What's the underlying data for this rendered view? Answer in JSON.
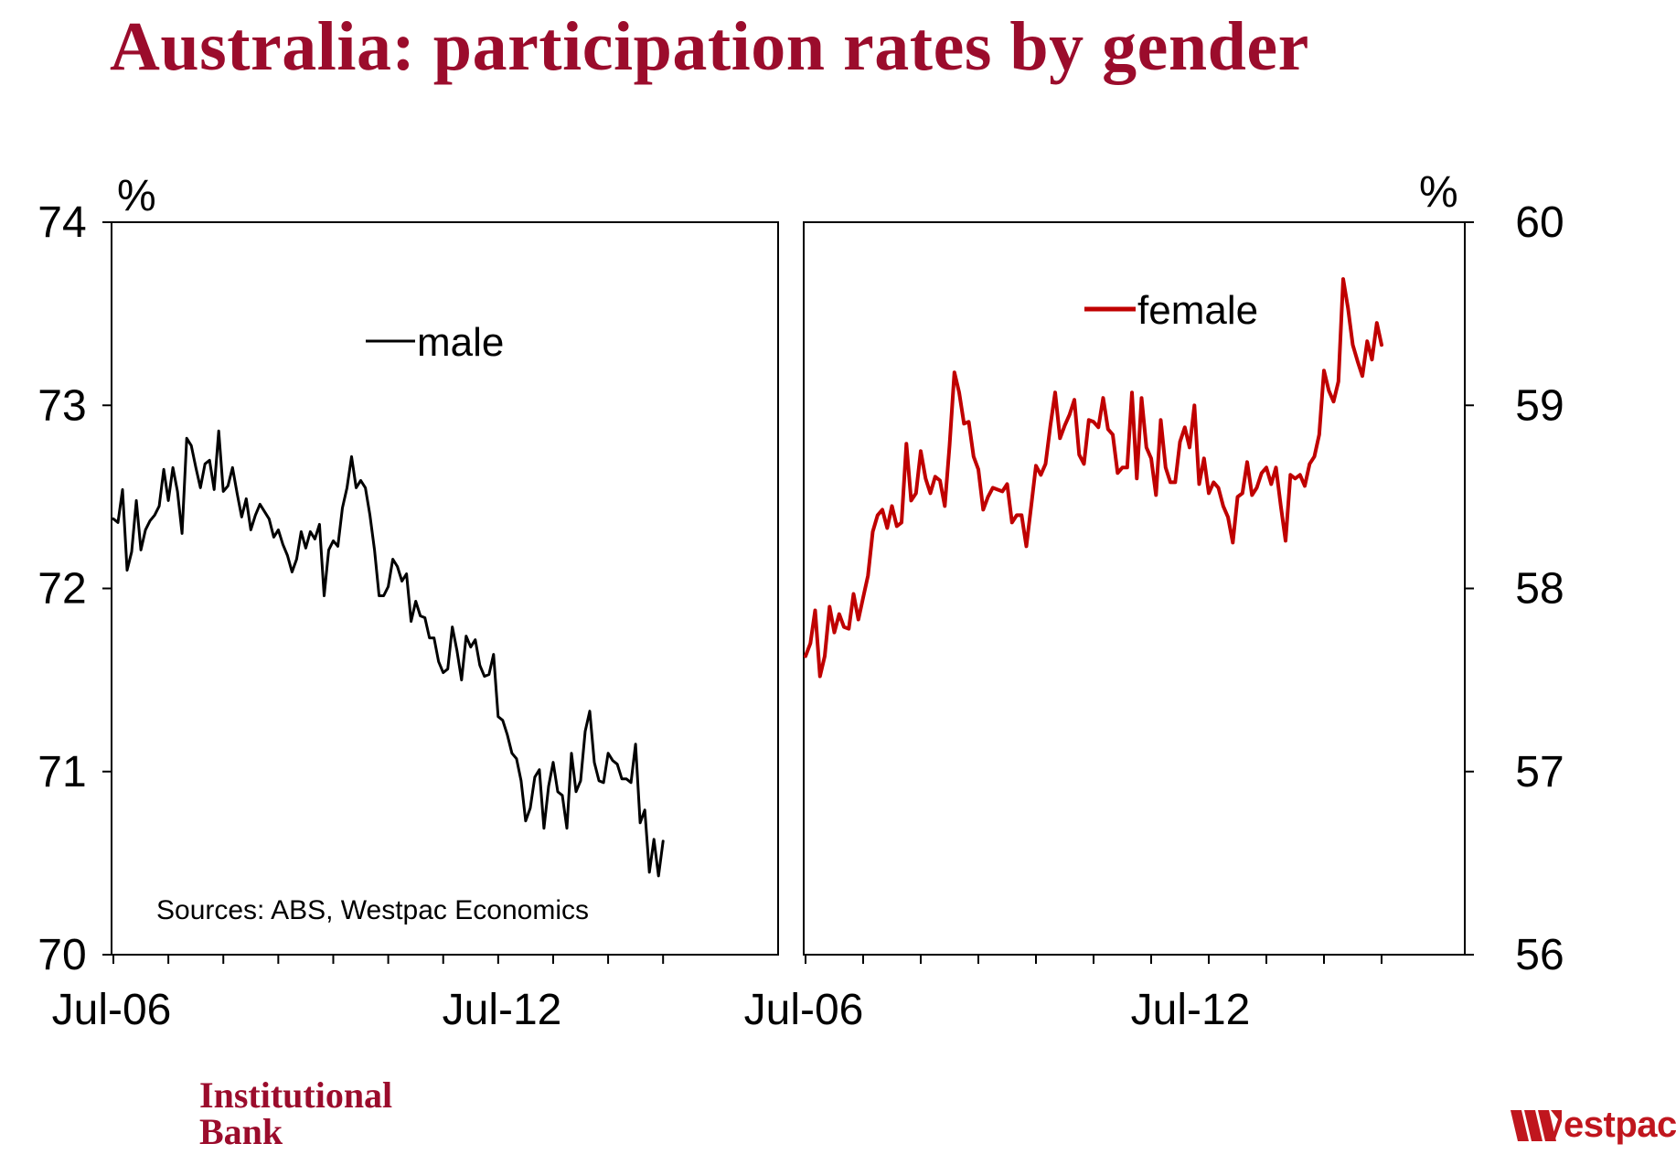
{
  "title": "Australia: participation rates by gender",
  "colors": {
    "title": "#9b0c2c",
    "male": "#000000",
    "female": "#c00000",
    "westpac": "#c0161e"
  },
  "footer": {
    "brand_line1": "Institutional",
    "brand_line2": "Bank",
    "westpac_text": "estpac"
  },
  "chart_data": [
    {
      "type": "line",
      "panel": "left",
      "unit_label": "%",
      "ylim": [
        70,
        74
      ],
      "yticks": [
        "70",
        "71",
        "72",
        "73",
        "74"
      ],
      "xtick_labels": [
        "Jul-06",
        "Jul-12",
        "Jul-06"
      ],
      "legend": "male",
      "legend_position": "top-center",
      "source_note": "Sources: ABS, Westpac Economics",
      "series": [
        {
          "name": "male",
          "color": "#000000",
          "values": [
            72.38,
            72.36,
            72.54,
            72.1,
            72.2,
            72.48,
            72.21,
            72.32,
            72.37,
            72.4,
            72.45,
            72.65,
            72.48,
            72.66,
            72.53,
            72.3,
            72.82,
            72.78,
            72.66,
            72.55,
            72.68,
            72.7,
            72.54,
            72.86,
            72.53,
            72.56,
            72.66,
            72.52,
            72.39,
            72.49,
            72.32,
            72.4,
            72.46,
            72.42,
            72.38,
            72.28,
            72.32,
            72.24,
            72.18,
            72.09,
            72.16,
            72.31,
            72.22,
            72.31,
            72.27,
            72.35,
            71.96,
            72.21,
            72.26,
            72.23,
            72.44,
            72.55,
            72.72,
            72.55,
            72.59,
            72.55,
            72.4,
            72.21,
            71.96,
            71.96,
            72.01,
            72.16,
            72.12,
            72.04,
            72.08,
            71.82,
            71.93,
            71.85,
            71.84,
            71.73,
            71.73,
            71.6,
            71.54,
            71.56,
            71.79,
            71.66,
            71.5,
            71.74,
            71.68,
            71.72,
            71.58,
            71.52,
            71.53,
            71.64,
            71.3,
            71.28,
            71.2,
            71.1,
            71.07,
            70.95,
            70.73,
            70.8,
            70.97,
            71.01,
            70.69,
            70.92,
            71.05,
            70.89,
            70.87,
            70.69,
            71.1,
            70.89,
            70.95,
            71.22,
            71.33,
            71.05,
            70.95,
            70.94,
            71.1,
            71.06,
            71.04,
            70.96,
            70.96,
            70.94,
            71.15,
            70.72,
            70.79,
            70.45,
            70.63,
            70.43,
            70.62
          ]
        }
      ]
    },
    {
      "type": "line",
      "panel": "right",
      "unit_label": "%",
      "ylim": [
        56,
        60
      ],
      "yticks": [
        "56",
        "57",
        "58",
        "59",
        "60"
      ],
      "xtick_labels": [
        "Jul-12"
      ],
      "legend": "female",
      "legend_position": "top-center",
      "series": [
        {
          "name": "female",
          "color": "#c00000",
          "values": [
            57.63,
            57.7,
            57.88,
            57.52,
            57.63,
            57.9,
            57.76,
            57.86,
            57.79,
            57.78,
            57.97,
            57.83,
            57.95,
            58.07,
            58.31,
            58.4,
            58.43,
            58.33,
            58.45,
            58.34,
            58.36,
            58.79,
            58.48,
            58.52,
            58.75,
            58.6,
            58.52,
            58.61,
            58.59,
            58.45,
            58.78,
            59.18,
            59.07,
            58.9,
            58.91,
            58.72,
            58.65,
            58.43,
            58.5,
            58.55,
            58.54,
            58.53,
            58.57,
            58.36,
            58.4,
            58.4,
            58.23,
            58.45,
            58.67,
            58.62,
            58.68,
            58.89,
            59.07,
            58.82,
            58.89,
            58.95,
            59.03,
            58.73,
            58.68,
            58.92,
            58.91,
            58.88,
            59.04,
            58.87,
            58.84,
            58.63,
            58.66,
            58.66,
            59.07,
            58.6,
            59.04,
            58.77,
            58.71,
            58.51,
            58.92,
            58.66,
            58.58,
            58.58,
            58.8,
            58.88,
            58.77,
            59.0,
            58.57,
            58.71,
            58.52,
            58.58,
            58.55,
            58.45,
            58.39,
            58.25,
            58.5,
            58.52,
            58.69,
            58.51,
            58.55,
            58.63,
            58.66,
            58.57,
            58.66,
            58.45,
            58.26,
            58.62,
            58.6,
            58.62,
            58.56,
            58.68,
            58.72,
            58.84,
            59.19,
            59.08,
            59.02,
            59.13,
            59.69,
            59.53,
            59.33,
            59.24,
            59.16,
            59.35,
            59.25,
            59.45,
            59.33
          ]
        }
      ]
    }
  ]
}
